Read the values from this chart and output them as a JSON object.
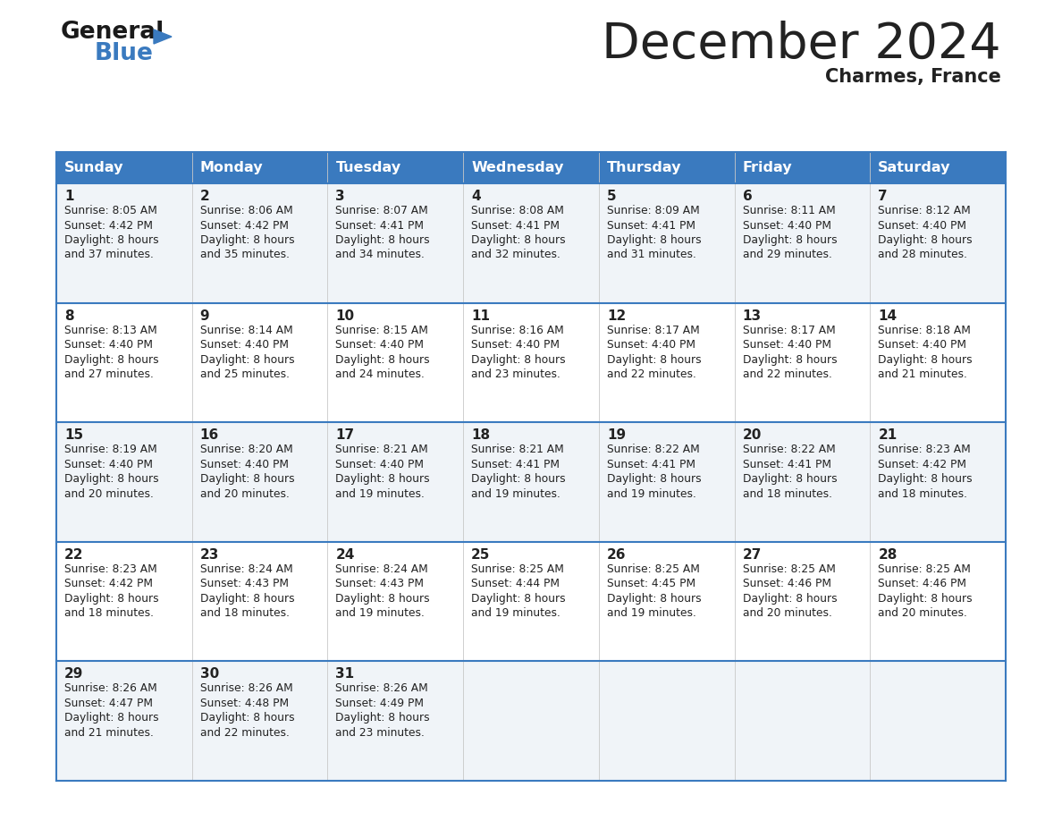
{
  "title": "December 2024",
  "subtitle": "Charmes, France",
  "header_color": "#3a7abf",
  "header_text_color": "#ffffff",
  "bg_color": "#ffffff",
  "row_bg_light": "#f0f4f8",
  "row_bg_white": "#ffffff",
  "text_color": "#222222",
  "border_color": "#3a7abf",
  "days_of_week": [
    "Sunday",
    "Monday",
    "Tuesday",
    "Wednesday",
    "Thursday",
    "Friday",
    "Saturday"
  ],
  "calendar": [
    [
      {
        "day": 1,
        "sunrise": "8:05 AM",
        "sunset": "4:42 PM",
        "daylight_hours": 8,
        "daylight_minutes": 37
      },
      {
        "day": 2,
        "sunrise": "8:06 AM",
        "sunset": "4:42 PM",
        "daylight_hours": 8,
        "daylight_minutes": 35
      },
      {
        "day": 3,
        "sunrise": "8:07 AM",
        "sunset": "4:41 PM",
        "daylight_hours": 8,
        "daylight_minutes": 34
      },
      {
        "day": 4,
        "sunrise": "8:08 AM",
        "sunset": "4:41 PM",
        "daylight_hours": 8,
        "daylight_minutes": 32
      },
      {
        "day": 5,
        "sunrise": "8:09 AM",
        "sunset": "4:41 PM",
        "daylight_hours": 8,
        "daylight_minutes": 31
      },
      {
        "day": 6,
        "sunrise": "8:11 AM",
        "sunset": "4:40 PM",
        "daylight_hours": 8,
        "daylight_minutes": 29
      },
      {
        "day": 7,
        "sunrise": "8:12 AM",
        "sunset": "4:40 PM",
        "daylight_hours": 8,
        "daylight_minutes": 28
      }
    ],
    [
      {
        "day": 8,
        "sunrise": "8:13 AM",
        "sunset": "4:40 PM",
        "daylight_hours": 8,
        "daylight_minutes": 27
      },
      {
        "day": 9,
        "sunrise": "8:14 AM",
        "sunset": "4:40 PM",
        "daylight_hours": 8,
        "daylight_minutes": 25
      },
      {
        "day": 10,
        "sunrise": "8:15 AM",
        "sunset": "4:40 PM",
        "daylight_hours": 8,
        "daylight_minutes": 24
      },
      {
        "day": 11,
        "sunrise": "8:16 AM",
        "sunset": "4:40 PM",
        "daylight_hours": 8,
        "daylight_minutes": 23
      },
      {
        "day": 12,
        "sunrise": "8:17 AM",
        "sunset": "4:40 PM",
        "daylight_hours": 8,
        "daylight_minutes": 22
      },
      {
        "day": 13,
        "sunrise": "8:17 AM",
        "sunset": "4:40 PM",
        "daylight_hours": 8,
        "daylight_minutes": 22
      },
      {
        "day": 14,
        "sunrise": "8:18 AM",
        "sunset": "4:40 PM",
        "daylight_hours": 8,
        "daylight_minutes": 21
      }
    ],
    [
      {
        "day": 15,
        "sunrise": "8:19 AM",
        "sunset": "4:40 PM",
        "daylight_hours": 8,
        "daylight_minutes": 20
      },
      {
        "day": 16,
        "sunrise": "8:20 AM",
        "sunset": "4:40 PM",
        "daylight_hours": 8,
        "daylight_minutes": 20
      },
      {
        "day": 17,
        "sunrise": "8:21 AM",
        "sunset": "4:40 PM",
        "daylight_hours": 8,
        "daylight_minutes": 19
      },
      {
        "day": 18,
        "sunrise": "8:21 AM",
        "sunset": "4:41 PM",
        "daylight_hours": 8,
        "daylight_minutes": 19
      },
      {
        "day": 19,
        "sunrise": "8:22 AM",
        "sunset": "4:41 PM",
        "daylight_hours": 8,
        "daylight_minutes": 19
      },
      {
        "day": 20,
        "sunrise": "8:22 AM",
        "sunset": "4:41 PM",
        "daylight_hours": 8,
        "daylight_minutes": 18
      },
      {
        "day": 21,
        "sunrise": "8:23 AM",
        "sunset": "4:42 PM",
        "daylight_hours": 8,
        "daylight_minutes": 18
      }
    ],
    [
      {
        "day": 22,
        "sunrise": "8:23 AM",
        "sunset": "4:42 PM",
        "daylight_hours": 8,
        "daylight_minutes": 18
      },
      {
        "day": 23,
        "sunrise": "8:24 AM",
        "sunset": "4:43 PM",
        "daylight_hours": 8,
        "daylight_minutes": 18
      },
      {
        "day": 24,
        "sunrise": "8:24 AM",
        "sunset": "4:43 PM",
        "daylight_hours": 8,
        "daylight_minutes": 19
      },
      {
        "day": 25,
        "sunrise": "8:25 AM",
        "sunset": "4:44 PM",
        "daylight_hours": 8,
        "daylight_minutes": 19
      },
      {
        "day": 26,
        "sunrise": "8:25 AM",
        "sunset": "4:45 PM",
        "daylight_hours": 8,
        "daylight_minutes": 19
      },
      {
        "day": 27,
        "sunrise": "8:25 AM",
        "sunset": "4:46 PM",
        "daylight_hours": 8,
        "daylight_minutes": 20
      },
      {
        "day": 28,
        "sunrise": "8:25 AM",
        "sunset": "4:46 PM",
        "daylight_hours": 8,
        "daylight_minutes": 20
      }
    ],
    [
      {
        "day": 29,
        "sunrise": "8:26 AM",
        "sunset": "4:47 PM",
        "daylight_hours": 8,
        "daylight_minutes": 21
      },
      {
        "day": 30,
        "sunrise": "8:26 AM",
        "sunset": "4:48 PM",
        "daylight_hours": 8,
        "daylight_minutes": 22
      },
      {
        "day": 31,
        "sunrise": "8:26 AM",
        "sunset": "4:49 PM",
        "daylight_hours": 8,
        "daylight_minutes": 23
      },
      null,
      null,
      null,
      null
    ]
  ],
  "logo_text_general": "General",
  "logo_text_blue": "Blue",
  "logo_color_general": "#1a1a1a",
  "logo_color_blue": "#3a7abf",
  "logo_triangle_color": "#3a7abf"
}
